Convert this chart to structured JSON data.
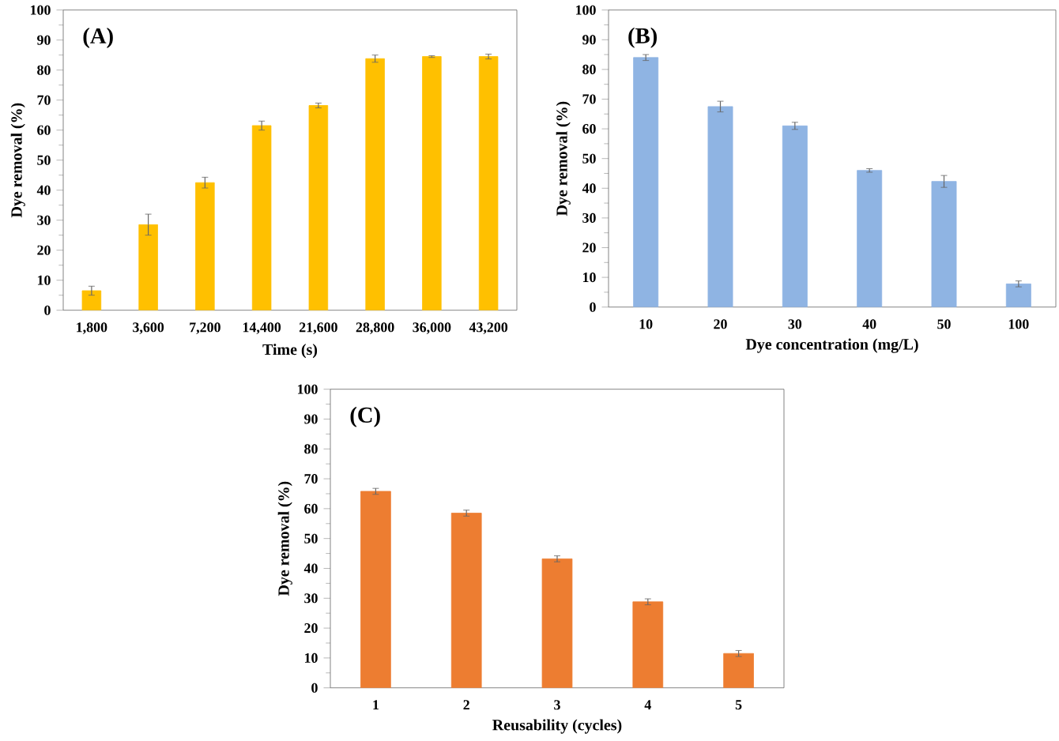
{
  "chart_data": [
    {
      "type": "bar",
      "xlabel": "Time (s)",
      "ylabel": "Dye removal  (%)",
      "annotations": [
        "(A)"
      ],
      "categories": [
        "1,800",
        "3,600",
        "7,200",
        "14,400",
        "21,600",
        "28,800",
        "36,000",
        "43,200"
      ],
      "values": [
        6.5,
        28.5,
        42.5,
        61.5,
        68.2,
        83.8,
        84.5,
        84.5
      ],
      "errors": [
        1.5,
        3.5,
        1.8,
        1.5,
        0.8,
        1.2,
        0.3,
        0.8
      ],
      "color": "#ffc000",
      "ylim": [
        0,
        100
      ],
      "yticks": [
        0,
        10,
        20,
        30,
        40,
        50,
        60,
        70,
        80,
        90,
        100
      ]
    },
    {
      "type": "bar",
      "xlabel": "Dye concentration (mg/L)",
      "ylabel": "Dye removal (%)",
      "annotations": [
        "(B)"
      ],
      "categories": [
        "10",
        "20",
        "30",
        "40",
        "50",
        "100"
      ],
      "values": [
        84,
        67.5,
        61,
        46,
        42.3,
        7.8
      ],
      "errors": [
        1,
        1.8,
        1.2,
        0.6,
        2,
        1
      ],
      "color": "#8fb4e3",
      "ylim": [
        0,
        100
      ],
      "yticks": [
        0,
        10,
        20,
        30,
        40,
        50,
        60,
        70,
        80,
        90,
        100
      ]
    },
    {
      "type": "bar",
      "xlabel": "Reusability (cycles)",
      "ylabel": "Dye removal (%)",
      "annotations": [
        "(C)"
      ],
      "categories": [
        "1",
        "2",
        "3",
        "4",
        "5"
      ],
      "values": [
        65.8,
        58.5,
        43.2,
        28.8,
        11.5
      ],
      "errors": [
        1,
        1,
        1,
        1,
        1
      ],
      "color": "#ed7d31",
      "ylim": [
        0,
        100
      ],
      "yticks": [
        0,
        10,
        20,
        30,
        40,
        50,
        60,
        70,
        80,
        90,
        100
      ]
    }
  ]
}
